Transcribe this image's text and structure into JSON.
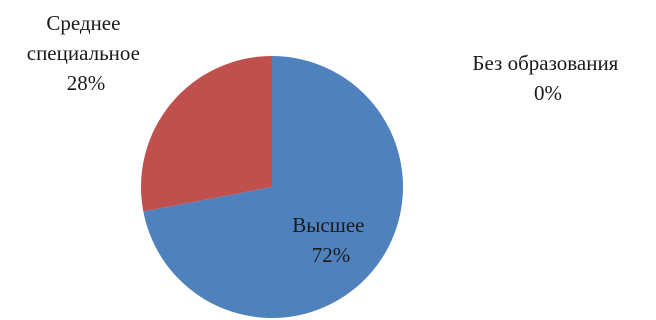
{
  "chart_data": {
    "type": "pie",
    "title": "",
    "start_angle_deg": 0,
    "direction": "clockwise",
    "slices": [
      {
        "name": "Высшее",
        "label_lines": [
          "Высшее",
          "72%"
        ],
        "value": 72,
        "color": "#4f81bd",
        "label_position": "inside"
      },
      {
        "name": "Среднее специальное",
        "label_lines": [
          "Среднее",
          "специальное",
          "28%"
        ],
        "value": 28,
        "color": "#c0504d",
        "label_position": "outside-top-left"
      },
      {
        "name": "Без образования",
        "label_lines": [
          "Без образования",
          "0%"
        ],
        "value": 0,
        "color": "#9bbb59",
        "label_position": "outside-top-right"
      }
    ]
  }
}
